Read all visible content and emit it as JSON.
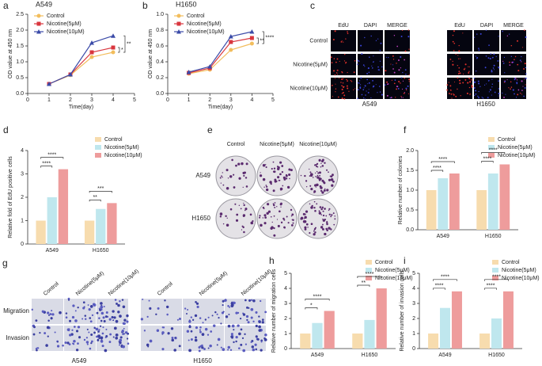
{
  "chart_data": [
    {
      "type": "line",
      "panel_label": "a",
      "title": "A549",
      "xlabel": "Time(day)",
      "ylabel": "OD value at 450 nm",
      "legend": "upper left",
      "x": [
        1,
        2,
        3,
        4
      ],
      "xlim": [
        0,
        5
      ],
      "xticks": [
        0,
        1,
        2,
        3,
        4,
        5
      ],
      "ylim": [
        0,
        2.5
      ],
      "yticks": [
        {
          "value": 0,
          "label": "0.0"
        },
        0.5,
        {
          "value": 1,
          "label": "1.0"
        },
        1.5,
        {
          "value": 2,
          "label": "2.0"
        },
        2.5
      ],
      "series": [
        {
          "name": "Control",
          "color": "#f2bd5c",
          "marker": "circle",
          "values": [
            0.3,
            0.58,
            1.15,
            1.3
          ]
        },
        {
          "name": "Nicotine(5μM)",
          "color": "#d9363e",
          "marker": "square",
          "values": [
            0.3,
            0.6,
            1.3,
            1.45
          ]
        },
        {
          "name": "Nicotine(10μM)",
          "color": "#3b4ba8",
          "marker": "triangle",
          "values": [
            0.3,
            0.6,
            1.6,
            1.82
          ]
        }
      ],
      "comparisons": [
        {
          "pair": [
            "Control",
            "Nicotine(5μM)"
          ],
          "label": "*"
        },
        {
          "pair": [
            "Control",
            "Nicotine(10μM)"
          ],
          "label": "**"
        }
      ]
    },
    {
      "type": "line",
      "panel_label": "b",
      "title": "H1650",
      "xlabel": "Time(day)",
      "ylabel": "OD value at 450 nm",
      "legend": "upper left",
      "x": [
        1,
        2,
        3,
        4
      ],
      "xlim": [
        0,
        5
      ],
      "xticks": [
        0,
        1,
        2,
        3,
        4,
        5
      ],
      "ylim": [
        0,
        1
      ],
      "yticks": [
        {
          "value": 0,
          "label": "0.0"
        },
        0.2,
        0.4,
        0.6,
        0.8,
        {
          "value": 1,
          "label": "1.0"
        }
      ],
      "series": [
        {
          "name": "Control",
          "color": "#f2bd5c",
          "marker": "circle",
          "values": [
            0.25,
            0.3,
            0.55,
            0.63
          ]
        },
        {
          "name": "Nicotine(5μM)",
          "color": "#d9363e",
          "marker": "square",
          "values": [
            0.26,
            0.32,
            0.65,
            0.7
          ]
        },
        {
          "name": "Nicotine(10μM)",
          "color": "#3b4ba8",
          "marker": "triangle",
          "values": [
            0.27,
            0.34,
            0.72,
            0.78
          ]
        }
      ],
      "comparisons": [
        {
          "pair": [
            "Control",
            "Nicotine(5μM)"
          ],
          "label": "**"
        },
        {
          "pair": [
            "Control",
            "Nicotine(10μM)"
          ],
          "label": "****"
        }
      ]
    },
    {
      "type": "bar",
      "panel_label": "d",
      "ylabel": "Relative fold of EdU positive cells",
      "legend": "upper right",
      "categories": [
        "A549",
        "H1650"
      ],
      "ylim": [
        0,
        4
      ],
      "yticks": [
        0,
        1,
        2,
        3,
        4
      ],
      "series": [
        {
          "name": "Control",
          "color": "#f7dcae",
          "values": [
            1,
            1
          ]
        },
        {
          "name": "Nicotine(5μM)",
          "color": "#bfe7ee",
          "values": [
            2,
            1.5
          ]
        },
        {
          "name": "Nicotine(10μM)",
          "color": "#ee9c9c",
          "values": [
            3.2,
            1.75
          ]
        }
      ],
      "comparisons": [
        {
          "category": "A549",
          "pair": [
            "Control",
            "Nicotine(5μM)"
          ],
          "label": "****"
        },
        {
          "category": "A549",
          "pair": [
            "Control",
            "Nicotine(10μM)"
          ],
          "label": "****"
        },
        {
          "category": "H1650",
          "pair": [
            "Control",
            "Nicotine(5μM)"
          ],
          "label": "**"
        },
        {
          "category": "H1650",
          "pair": [
            "Control",
            "Nicotine(10μM)"
          ],
          "label": "***"
        }
      ]
    },
    {
      "type": "bar",
      "panel_label": "f",
      "ylabel": "Relative number of colonies",
      "legend": "upper right",
      "categories": [
        "A549",
        "H1650"
      ],
      "ylim": [
        0,
        2
      ],
      "yticks": [
        {
          "value": 0,
          "label": "0.0"
        },
        0.5,
        {
          "value": 1,
          "label": "1.0"
        },
        1.5,
        {
          "value": 2,
          "label": "2.0"
        }
      ],
      "series": [
        {
          "name": "Control",
          "color": "#f7dcae",
          "values": [
            1,
            1
          ]
        },
        {
          "name": "Nicotine(5μM)",
          "color": "#bfe7ee",
          "values": [
            1.3,
            1.42
          ]
        },
        {
          "name": "Nicotine(10μM)",
          "color": "#ee9c9c",
          "values": [
            1.42,
            1.65
          ]
        }
      ],
      "comparisons": [
        {
          "category": "A549",
          "pair": [
            "Control",
            "Nicotine(5μM)"
          ],
          "label": "****"
        },
        {
          "category": "A549",
          "pair": [
            "Control",
            "Nicotine(10μM)"
          ],
          "label": "****"
        },
        {
          "category": "H1650",
          "pair": [
            "Control",
            "Nicotine(5μM)"
          ],
          "label": "****"
        },
        {
          "category": "H1650",
          "pair": [
            "Control",
            "Nicotine(10μM)"
          ],
          "label": "****"
        }
      ]
    },
    {
      "type": "bar",
      "panel_label": "h",
      "ylabel": "Relative number of migration cells",
      "legend": "upper right",
      "categories": [
        "A549",
        "H1650"
      ],
      "ylim": [
        0,
        5
      ],
      "yticks": [
        0,
        1,
        2,
        3,
        4,
        5
      ],
      "series": [
        {
          "name": "Control",
          "color": "#f7dcae",
          "values": [
            1,
            1
          ]
        },
        {
          "name": "Nicotine(5μM)",
          "color": "#bfe7ee",
          "values": [
            1.7,
            1.9
          ]
        },
        {
          "name": "Nicotine(10μM)",
          "color": "#ee9c9c",
          "values": [
            2.5,
            4
          ]
        }
      ],
      "comparisons": [
        {
          "category": "A549",
          "pair": [
            "Control",
            "Nicotine(5μM)"
          ],
          "label": "*"
        },
        {
          "category": "A549",
          "pair": [
            "Control",
            "Nicotine(10μM)"
          ],
          "label": "****"
        },
        {
          "category": "H1650",
          "pair": [
            "Control",
            "Nicotine(5μM)"
          ],
          "label": "**"
        },
        {
          "category": "H1650",
          "pair": [
            "Control",
            "Nicotine(10μM)"
          ],
          "label": "****"
        }
      ]
    },
    {
      "type": "bar",
      "panel_label": "i",
      "ylabel": "Relative number of invasion cells",
      "legend": "upper right",
      "categories": [
        "A549",
        "H1650"
      ],
      "ylim": [
        0,
        5
      ],
      "yticks": [
        0,
        1,
        2,
        3,
        4,
        5
      ],
      "series": [
        {
          "name": "Control",
          "color": "#f7dcae",
          "values": [
            1,
            1
          ]
        },
        {
          "name": "Nicotine(5μM)",
          "color": "#bfe7ee",
          "values": [
            2.7,
            2
          ]
        },
        {
          "name": "Nicotine(10μM)",
          "color": "#ee9c9c",
          "values": [
            3.8,
            3.8
          ]
        }
      ],
      "comparisons": [
        {
          "category": "A549",
          "pair": [
            "Control",
            "Nicotine(5μM)"
          ],
          "label": "****"
        },
        {
          "category": "A549",
          "pair": [
            "Control",
            "Nicotine(10μM)"
          ],
          "label": "****"
        },
        {
          "category": "H1650",
          "pair": [
            "Control",
            "Nicotine(5μM)"
          ],
          "label": "****"
        },
        {
          "category": "H1650",
          "pair": [
            "Control",
            "Nicotine(10μM)"
          ],
          "label": "****"
        }
      ]
    }
  ],
  "image_panels": [
    {
      "panel_label": "c",
      "column_labels": [
        "EdU",
        "DAPI",
        "MERGE",
        "EdU",
        "DAPI",
        "MERGE"
      ],
      "row_labels": [
        "Control",
        "Nicotine(5μM)",
        "Nicotine(10μM)"
      ],
      "group_labels": [
        "A549",
        "H1650"
      ]
    },
    {
      "panel_label": "e",
      "column_labels": [
        "Control",
        "Nicotine(5μM)",
        "Nicotine(10μM)"
      ],
      "row_labels": [
        "A549",
        "H1650"
      ]
    },
    {
      "panel_label": "g",
      "column_labels": [
        "Control",
        "Nicotine(5μM)",
        "Nicotine(10μM)",
        "Control",
        "Nicotine(5μM)",
        "Nicotine(10μM)"
      ],
      "row_labels": [
        "Migration",
        "Invasion"
      ],
      "group_labels": [
        "A549",
        "H1650"
      ]
    }
  ]
}
